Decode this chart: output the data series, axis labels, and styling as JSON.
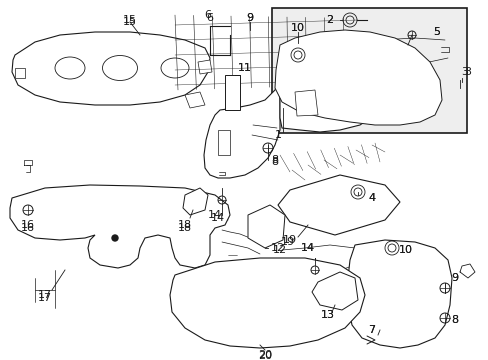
{
  "bg": "#ffffff",
  "lc": "#1a1a1a",
  "fig_w": 4.89,
  "fig_h": 3.6,
  "dpi": 100
}
